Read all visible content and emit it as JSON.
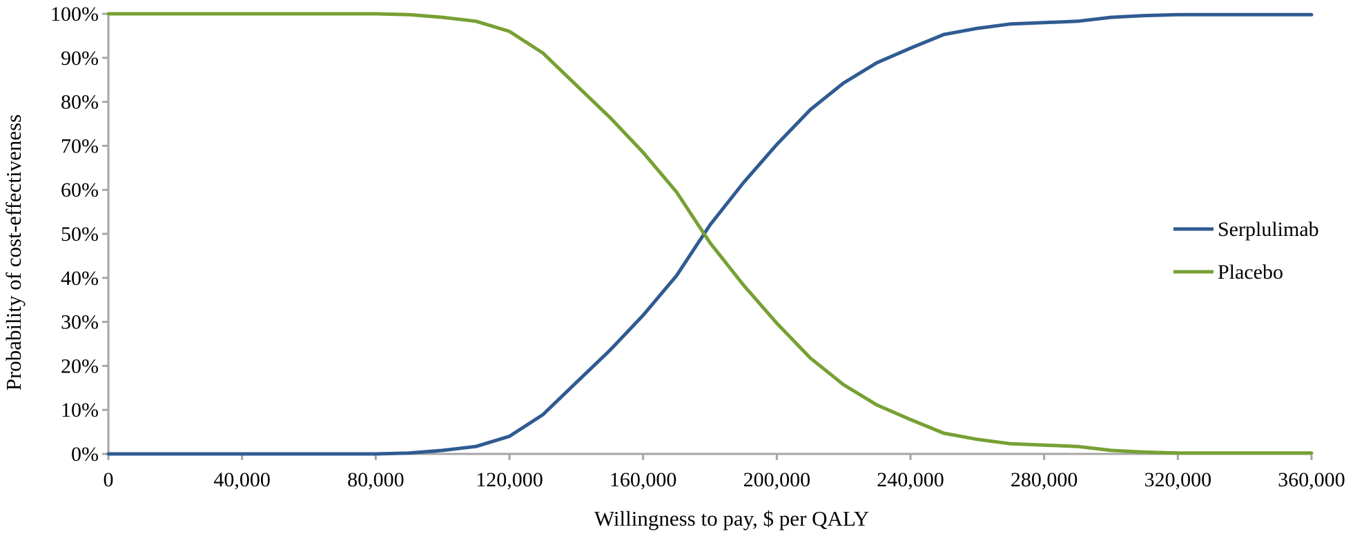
{
  "chart_data": {
    "type": "line",
    "title": "",
    "xlabel": "Willingness to pay, $ per QALY",
    "ylabel": "Probability of cost-effectiveness",
    "xlim": [
      0,
      360000
    ],
    "ylim": [
      0,
      100
    ],
    "x_ticks": [
      0,
      40000,
      80000,
      120000,
      160000,
      200000,
      240000,
      280000,
      320000,
      360000
    ],
    "x_tick_labels": [
      "0",
      "40,000",
      "80,000",
      "120,000",
      "160,000",
      "200,000",
      "240,000",
      "280,000",
      "320,000",
      "360,000"
    ],
    "y_ticks": [
      0,
      10,
      20,
      30,
      40,
      50,
      60,
      70,
      80,
      90,
      100
    ],
    "y_tick_labels": [
      "0%",
      "10%",
      "20%",
      "30%",
      "40%",
      "50%",
      "60%",
      "70%",
      "80%",
      "90%",
      "100%"
    ],
    "grid": false,
    "legend_position": "right",
    "x": [
      0,
      10000,
      20000,
      30000,
      40000,
      50000,
      60000,
      70000,
      80000,
      90000,
      100000,
      110000,
      120000,
      130000,
      140000,
      150000,
      160000,
      170000,
      180000,
      190000,
      200000,
      210000,
      220000,
      230000,
      240000,
      250000,
      260000,
      270000,
      280000,
      290000,
      300000,
      310000,
      320000,
      330000,
      340000,
      350000,
      360000
    ],
    "series": [
      {
        "name": "Serplulimab",
        "color": "#2f5b92",
        "values": [
          0,
          0,
          0,
          0,
          0,
          0,
          0,
          0,
          0,
          0.2,
          0.8,
          1.7,
          4.0,
          8.9,
          16.2,
          23.5,
          31.5,
          40.5,
          52.0,
          61.6,
          70.3,
          78.2,
          84.3,
          88.9,
          92.2,
          95.3,
          96.7,
          97.7,
          98.0,
          98.3,
          99.2,
          99.6,
          99.8,
          99.8,
          99.8,
          99.8,
          99.8
        ]
      },
      {
        "name": "Placebo",
        "color": "#77a033",
        "values": [
          100,
          100,
          100,
          100,
          100,
          100,
          100,
          100,
          100,
          99.8,
          99.2,
          98.3,
          96.0,
          91.1,
          83.8,
          76.5,
          68.5,
          59.5,
          48.0,
          38.4,
          29.7,
          21.8,
          15.7,
          11.1,
          7.8,
          4.7,
          3.3,
          2.3,
          2.0,
          1.7,
          0.8,
          0.4,
          0.2,
          0.2,
          0.2,
          0.2,
          0.2
        ]
      }
    ]
  }
}
